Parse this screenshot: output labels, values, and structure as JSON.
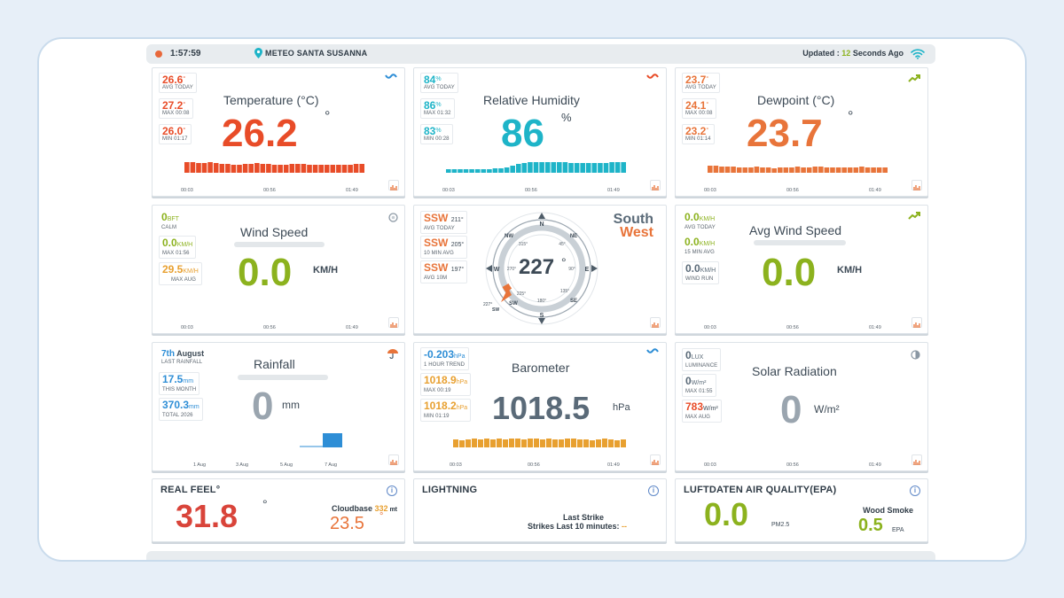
{
  "colors": {
    "red": "#e84c28",
    "orange": "#e8743a",
    "teal": "#1eb4c8",
    "green": "#8cb21e",
    "amber": "#e8a030",
    "blue": "#2e8ed6",
    "slate": "#5a6a78",
    "bred": "#d9443a"
  },
  "header": {
    "time": "1:57:59",
    "station": "METEO SANTA SUSANNA",
    "updated_prefix": "Updated : ",
    "updated_value": "12",
    "updated_suffix": " Seconds Ago"
  },
  "temperature": {
    "title": "Temperature (°C)",
    "value": "26.2",
    "unit": "°",
    "trend_icon": "wave-icon",
    "stats": [
      {
        "value": "26.6",
        "unit": "°",
        "label": "AVG TODAY"
      },
      {
        "value": "27.2",
        "unit": "°",
        "label": "MAX 00:08"
      },
      {
        "value": "26.0",
        "unit": "°",
        "label": "MIN 01:17"
      }
    ],
    "ticks": [
      "00:03",
      "00:56",
      "01:49"
    ]
  },
  "humidity": {
    "title": "Relative Humidity",
    "value": "86",
    "unit": "%",
    "trend_icon": "wave-icon",
    "stats": [
      {
        "value": "84",
        "unit": "%",
        "label": "AVG TODAY"
      },
      {
        "value": "86",
        "unit": "%",
        "label": "MAX 01:32"
      },
      {
        "value": "83",
        "unit": "%",
        "label": "MIN 00:28"
      }
    ],
    "ticks": [
      "00:03",
      "00:56",
      "01:49"
    ]
  },
  "dewpoint": {
    "title": "Dewpoint (°C)",
    "value": "23.7",
    "unit": "°",
    "trend_icon": "rising-arrow-icon",
    "stats": [
      {
        "value": "23.7",
        "unit": "°",
        "label": "AVG TODAY"
      },
      {
        "value": "24.1",
        "unit": "°",
        "label": "MAX 00:08"
      },
      {
        "value": "23.2",
        "unit": "°",
        "label": "MIN 01:14"
      }
    ],
    "ticks": [
      "00:03",
      "00:56",
      "01:49"
    ]
  },
  "wind": {
    "title": "Wind Speed",
    "value": "0.0",
    "unit": "KM/H",
    "status_icon": "calm-circle-icon",
    "stats": [
      {
        "value": "0",
        "unit": "BFT",
        "label": "CALM"
      },
      {
        "value": "0.0",
        "unit": "KM/H",
        "label": "MAX 01:56"
      },
      {
        "value": "29.5",
        "unit": "KM/H",
        "label": "MAX AUG"
      }
    ],
    "ticks": [
      "00:03",
      "00:56",
      "01:49"
    ]
  },
  "direction": {
    "degrees": "227",
    "degree_sign": "°",
    "name_line1": "South",
    "name_line2": "West",
    "stats": [
      {
        "value": "SSW",
        "extra": "211°",
        "label": "AVG TODAY"
      },
      {
        "value": "SSW",
        "extra": "205°",
        "label": "10 MIN AVG"
      },
      {
        "value": "SSW",
        "extra": "197°",
        "label": "AVG 10M"
      }
    ],
    "compass": {
      "N": "N",
      "NE": "NE",
      "E": "E",
      "SE": "SE",
      "S": "S",
      "SW": "SW",
      "W": "W",
      "NW": "NW",
      "d315": "315°",
      "d45": "45°",
      "d90": "90°",
      "d135": "135°",
      "d180": "180°",
      "d270": "270°",
      "d225": "225°",
      "sw_tag": "SW",
      "deg_tag": "227°"
    },
    "ticks": [
      "00:03",
      "00:56",
      "01:49"
    ]
  },
  "avgwind": {
    "title": "Avg Wind Speed",
    "value": "0.0",
    "unit": "KM/H",
    "trend_icon": "rising-arrow-icon",
    "stats": [
      {
        "value": "0.0",
        "unit": "KM/H",
        "label": "AVG TODAY"
      },
      {
        "value": "0.0",
        "unit": "KM/H",
        "label": "15 MIN AVG"
      },
      {
        "value": "0.0",
        "unit": "KM/H",
        "label": "WIND RUN"
      }
    ],
    "ticks": [
      "00:03",
      "00:56",
      "01:49"
    ]
  },
  "rain": {
    "title": "Rainfall",
    "value": "0",
    "unit": "mm",
    "status_icon": "umbrella-icon",
    "stats": [
      {
        "value": "7th",
        "unit": " August",
        "label": "LAST RAINFALL"
      },
      {
        "value": "17.5",
        "unit": "mm",
        "label": "THIS MONTH"
      },
      {
        "value": "370.3",
        "unit": "mm",
        "label": "TOTAL 2026"
      }
    ],
    "ticks": [
      "1 Aug",
      "3 Aug",
      "5 Aug",
      "7 Aug"
    ]
  },
  "baro": {
    "title": "Barometer",
    "value": "1018.5",
    "unit": "hPa",
    "trend_icon": "wave-icon",
    "stats": [
      {
        "value": "-0.203",
        "unit": "hPa",
        "label": "1 HOUR TREND"
      },
      {
        "value": "1018.9",
        "unit": "hPa",
        "label": "MAX 00:19"
      },
      {
        "value": "1018.2",
        "unit": "hPa",
        "label": "MIN 01:19"
      }
    ],
    "ticks": [
      "00:03",
      "00:56",
      "01:49"
    ]
  },
  "solar": {
    "title": "Solar Radiation",
    "value": "0",
    "unit": "W/m²",
    "status_icon": "half-moon-icon",
    "stats": [
      {
        "value": "0",
        "unit": "LUX",
        "label": "LUMINANCE"
      },
      {
        "value": "0",
        "unit": "W/m²",
        "label": "MAX 01:55"
      },
      {
        "value": "783",
        "unit": "W/m²",
        "label": "MAX AUG"
      }
    ],
    "ticks": [
      "00:03",
      "00:56",
      "01:49"
    ]
  },
  "realfeel": {
    "title": "REAL FEEL°",
    "value": "31.8",
    "unit": "°",
    "cloudbase_label": "Cloudbase ",
    "cloudbase_value": "332",
    "cloudbase_unit": " mt",
    "second_value": "23.5",
    "second_unit": "°"
  },
  "lightning": {
    "title": "LIGHTNING",
    "line1": "Last Strike",
    "line2": "Strikes Last 10 minutes: ",
    "line2_value": "--"
  },
  "air": {
    "title": "LUFTDATEN AIR QUALITY(EPA)",
    "value": "0.0",
    "unit": "PM2.5",
    "wood_label": "Wood Smoke",
    "wood_value": "0.5",
    "wood_unit": "EPA"
  }
}
